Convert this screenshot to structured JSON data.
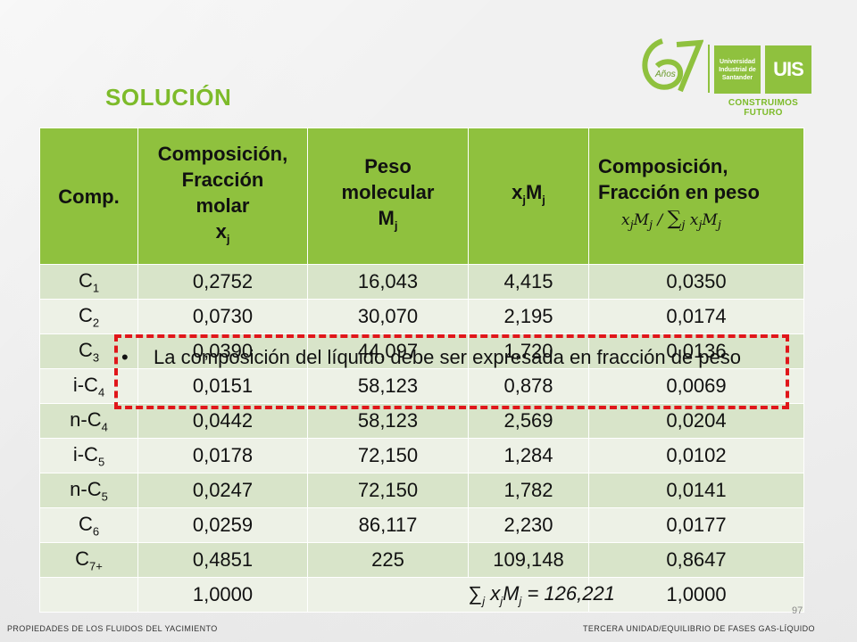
{
  "slide": {
    "title": "SOLUCIÓN",
    "page_number": "97",
    "footer_left": "PROPIEDADES DE LOS FLUIDOS DEL YACIMIENTO",
    "footer_right": "TERCERA UNIDAD/EQUILIBRIO DE FASES GAS-LÍQUIDO"
  },
  "logo": {
    "years_mark": "67",
    "years_word": "Años",
    "badge_text": "Universidad Industrial de Santander",
    "uis": "UIS",
    "tagline": "CONSTRUIMOS FUTURO"
  },
  "table": {
    "headers": {
      "comp": "Comp.",
      "molar_1": "Composición,",
      "molar_2": "Fracción",
      "molar_3": "molar",
      "molar_var": "x",
      "molar_var_sub": "j",
      "mw_1": "Peso",
      "mw_2": "molecular",
      "mw_var": "M",
      "mw_var_sub": "j",
      "xm_var": "x",
      "xm_sub1": "j",
      "xm_var2": "M",
      "xm_sub2": "j",
      "weight_1": "Composición,",
      "weight_2": "Fracción en peso"
    },
    "rows": [
      {
        "comp": "C",
        "sub": "1",
        "x": "0,2752",
        "mw": "16,043",
        "xm": "4,415",
        "w": "0,0350"
      },
      {
        "comp": "C",
        "sub": "2",
        "x": "0,0730",
        "mw": "30,070",
        "xm": "2,195",
        "w": "0,0174"
      },
      {
        "comp": "C",
        "sub": "3",
        "x": "0,0390",
        "mw": "44,097",
        "xm": "1,720",
        "w": "0,0136"
      },
      {
        "comp": "i-C",
        "sub": "4",
        "x": "0,0151",
        "mw": "58,123",
        "xm": "0,878",
        "w": "0,0069"
      },
      {
        "comp": "n-C",
        "sub": "4",
        "x": "0,0442",
        "mw": "58,123",
        "xm": "2,569",
        "w": "0,0204"
      },
      {
        "comp": "i-C",
        "sub": "5",
        "x": "0,0178",
        "mw": "72,150",
        "xm": "1,284",
        "w": "0,0102"
      },
      {
        "comp": "n-C",
        "sub": "5",
        "x": "0,0247",
        "mw": "72,150",
        "xm": "1,782",
        "w": "0,0141"
      },
      {
        "comp": "C",
        "sub": "6",
        "x": "0,0259",
        "mw": "86,117",
        "xm": "2,230",
        "w": "0,0177"
      },
      {
        "comp": "C",
        "sub": "7+",
        "x": "0,4851",
        "mw": "225",
        "xm": "109,148",
        "w": "0,8647"
      }
    ],
    "totals": {
      "x": "1,0000",
      "xm_sum": "x",
      "xm_sum_sub": "j",
      "xm_sum_m": "M",
      "xm_sum_msub": "j",
      "xm_sum_value": "= 126,221",
      "w": "1,0000"
    }
  },
  "callout": {
    "bullet": "•",
    "text": "La composición del líquido debe ser expresada en fracción de peso"
  },
  "colors": {
    "accent_green": "#8fc13e",
    "title_green": "#7dbb2a",
    "callout_red": "#e0161a"
  }
}
